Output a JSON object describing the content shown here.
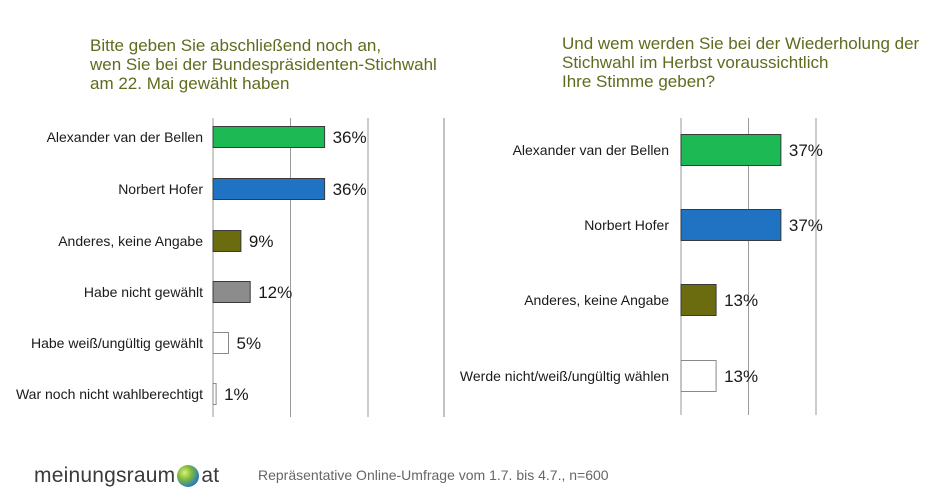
{
  "chart_data": [
    {
      "type": "bar",
      "orientation": "horizontal",
      "title": "Bitte geben Sie abschließend noch an,\nwen Sie bei der Bundespräsidenten-Stichwahl\nam 22. Mai gewählt haben",
      "categories": [
        "Alexander van der Bellen",
        "Norbert Hofer",
        "Anderes, keine Angabe",
        "Habe nicht gewählt",
        "Habe weiß/ungültig gewählt",
        "War noch nicht wahlberechtigt"
      ],
      "values": [
        36,
        36,
        9,
        12,
        5,
        1
      ],
      "value_labels": [
        "36%",
        "36%",
        "9%",
        "12%",
        "5%",
        "1%"
      ],
      "colors": [
        "#1db954",
        "#1f73c2",
        "#6b6b10",
        "#8c8c8c",
        "#ffffff",
        "#ffffff"
      ],
      "xlim": [
        0,
        60
      ],
      "grid": true
    },
    {
      "type": "bar",
      "orientation": "horizontal",
      "title": "Und wem werden Sie bei der Wiederholung der\nStichwahl im Herbst voraussichtlich\nIhre Stimme geben?",
      "categories": [
        "Alexander van der Bellen",
        "Norbert Hofer",
        "Anderes, keine Angabe",
        "Werde nicht/weiß/ungültig wählen"
      ],
      "values": [
        37,
        37,
        13,
        13
      ],
      "value_labels": [
        "37%",
        "37%",
        "13%",
        "13%"
      ],
      "colors": [
        "#1db954",
        "#1f73c2",
        "#6b6b10",
        "#ffffff"
      ],
      "xlim": [
        0,
        60
      ],
      "grid": true
    }
  ],
  "footer": {
    "logo_left": "meinungsraum",
    "logo_right": "at",
    "note": "Repräsentative Online-Umfrage vom 1.7. bis 4.7., n=600"
  }
}
